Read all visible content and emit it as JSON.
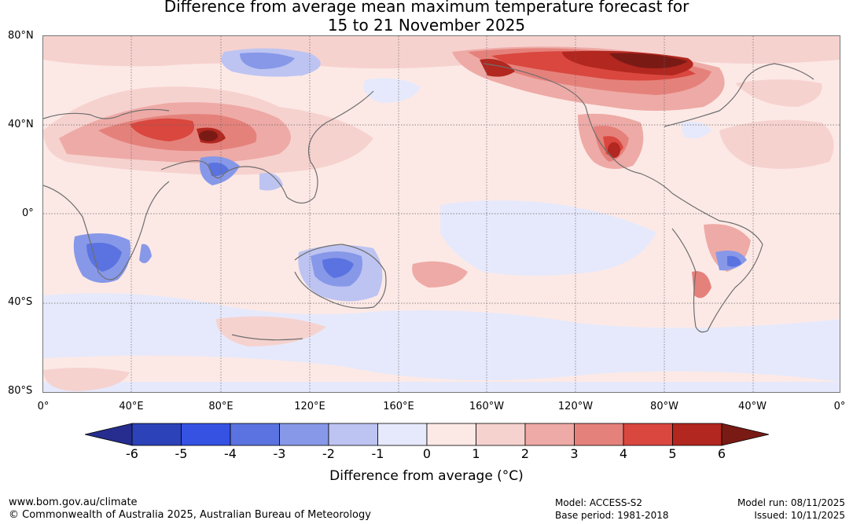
{
  "title_line1": "Difference from average mean maximum temperature forecast for",
  "title_line2": "15 to 21 November 2025",
  "map": {
    "lat_labels": [
      "80°N",
      "40°N",
      "0°",
      "40°S",
      "80°S"
    ],
    "lon_labels": [
      "0°",
      "40°E",
      "80°E",
      "120°E",
      "160°E",
      "160°W",
      "120°W",
      "80°W",
      "40°W",
      "0°"
    ]
  },
  "colorbar": {
    "colors": [
      "#262d8f",
      "#2b42b8",
      "#3552e3",
      "#5b73e0",
      "#8798e8",
      "#bdc4f2",
      "#e6e9fb",
      "#fce9e6",
      "#f6d2cf",
      "#eeaaa6",
      "#e5817b",
      "#d9473f",
      "#b2271f",
      "#7a1a15"
    ],
    "ticks": [
      "-6",
      "-5",
      "-4",
      "-3",
      "-2",
      "-1",
      "0",
      "1",
      "2",
      "3",
      "4",
      "5",
      "6"
    ],
    "label": "Difference from average (°C)"
  },
  "footer": {
    "website": "www.bom.gov.au/climate",
    "copyright": "© Commonwealth of Australia 2025, Australian Bureau of Meteorology",
    "model": "Model: ACCESS-S2",
    "base_period": "Base period: 1981-2018",
    "model_run": "Model run: 08/11/2025",
    "issued": "Issued: 10/11/2025"
  }
}
